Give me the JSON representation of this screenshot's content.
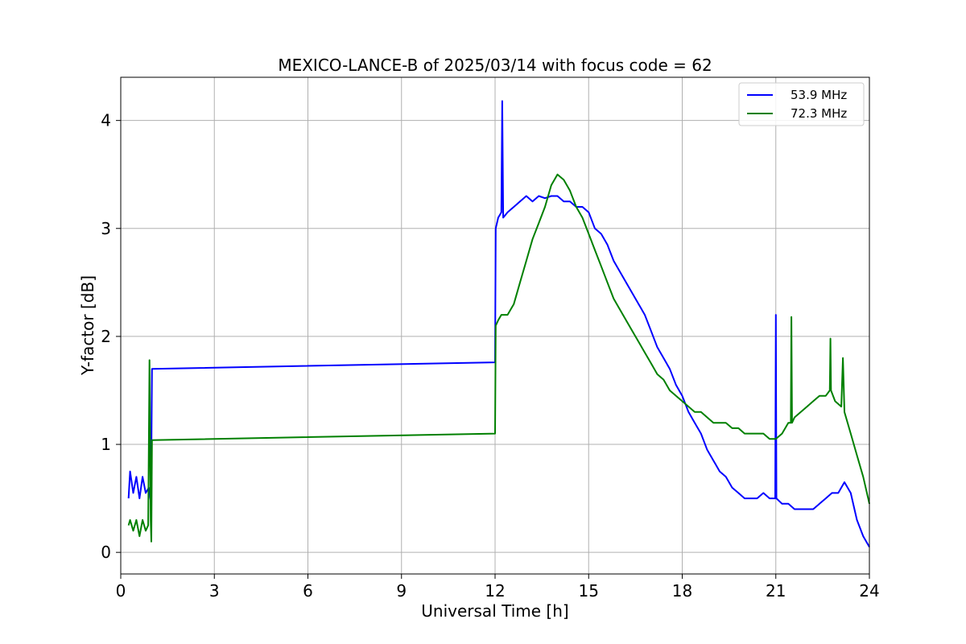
{
  "chart_data": {
    "type": "line",
    "title": "MEXICO-LANCE-B of 2025/03/14 with focus code = 62",
    "xlabel": "Universal Time [h]",
    "ylabel": "Y-factor [dB]",
    "xlim": [
      0,
      24
    ],
    "ylim": [
      -0.2,
      4.4
    ],
    "xticks": [
      0,
      3,
      6,
      9,
      12,
      15,
      18,
      21,
      24
    ],
    "yticks": [
      0,
      1,
      2,
      3,
      4
    ],
    "grid": true,
    "legend_position": "top-right",
    "series": [
      {
        "name": "53.9 MHz",
        "color": "#0000ff",
        "x": [
          0.25,
          0.3,
          0.4,
          0.5,
          0.6,
          0.7,
          0.8,
          0.9,
          0.97,
          1.0,
          12.0,
          12.02,
          12.1,
          12.2,
          12.23,
          12.26,
          12.4,
          12.6,
          12.8,
          13.0,
          13.2,
          13.4,
          13.6,
          13.8,
          14.0,
          14.2,
          14.4,
          14.6,
          14.8,
          15.0,
          15.2,
          15.4,
          15.6,
          15.8,
          16.0,
          16.2,
          16.4,
          16.6,
          16.8,
          17.0,
          17.2,
          17.4,
          17.6,
          17.8,
          18.0,
          18.2,
          18.4,
          18.6,
          18.8,
          19.0,
          19.2,
          19.4,
          19.6,
          19.8,
          20.0,
          20.2,
          20.4,
          20.6,
          20.8,
          20.98,
          21.0,
          21.02,
          21.2,
          21.4,
          21.6,
          21.8,
          22.0,
          22.2,
          22.4,
          22.6,
          22.8,
          23.0,
          23.2,
          23.4,
          23.6,
          23.8,
          24.0
        ],
        "y": [
          0.5,
          0.75,
          0.55,
          0.7,
          0.5,
          0.7,
          0.55,
          0.6,
          0.45,
          1.7,
          1.76,
          3.0,
          3.1,
          3.15,
          4.18,
          3.1,
          3.15,
          3.2,
          3.25,
          3.3,
          3.25,
          3.3,
          3.28,
          3.3,
          3.3,
          3.25,
          3.25,
          3.2,
          3.2,
          3.15,
          3.0,
          2.95,
          2.85,
          2.7,
          2.6,
          2.5,
          2.4,
          2.3,
          2.2,
          2.05,
          1.9,
          1.8,
          1.7,
          1.55,
          1.45,
          1.3,
          1.2,
          1.1,
          0.95,
          0.85,
          0.75,
          0.7,
          0.6,
          0.55,
          0.5,
          0.5,
          0.5,
          0.55,
          0.5,
          0.5,
          2.2,
          0.5,
          0.45,
          0.45,
          0.4,
          0.4,
          0.4,
          0.4,
          0.45,
          0.5,
          0.55,
          0.55,
          0.65,
          0.55,
          0.3,
          0.15,
          0.05
        ]
      },
      {
        "name": "72.3 MHz",
        "color": "#008000",
        "x": [
          0.25,
          0.3,
          0.4,
          0.5,
          0.6,
          0.7,
          0.8,
          0.88,
          0.92,
          0.96,
          0.98,
          1.0,
          12.0,
          12.02,
          12.1,
          12.2,
          12.4,
          12.6,
          12.8,
          13.0,
          13.2,
          13.4,
          13.6,
          13.8,
          14.0,
          14.2,
          14.4,
          14.6,
          14.8,
          15.0,
          15.2,
          15.4,
          15.6,
          15.8,
          16.0,
          16.2,
          16.4,
          16.6,
          16.8,
          17.0,
          17.2,
          17.4,
          17.6,
          17.8,
          18.0,
          18.2,
          18.4,
          18.6,
          18.8,
          19.0,
          19.2,
          19.4,
          19.6,
          19.8,
          20.0,
          20.2,
          20.4,
          20.6,
          20.8,
          21.0,
          21.2,
          21.4,
          21.48,
          21.5,
          21.52,
          21.6,
          21.8,
          22.0,
          22.2,
          22.4,
          22.6,
          22.73,
          22.75,
          22.77,
          22.9,
          23.1,
          23.15,
          23.2,
          23.4,
          23.6,
          23.8,
          24.0
        ],
        "y": [
          0.25,
          0.3,
          0.2,
          0.3,
          0.15,
          0.3,
          0.2,
          0.25,
          1.78,
          0.3,
          0.1,
          1.04,
          1.1,
          2.1,
          2.15,
          2.2,
          2.2,
          2.3,
          2.5,
          2.7,
          2.9,
          3.05,
          3.2,
          3.4,
          3.5,
          3.45,
          3.35,
          3.2,
          3.1,
          2.95,
          2.8,
          2.65,
          2.5,
          2.35,
          2.25,
          2.15,
          2.05,
          1.95,
          1.85,
          1.75,
          1.65,
          1.6,
          1.5,
          1.45,
          1.4,
          1.35,
          1.3,
          1.3,
          1.25,
          1.2,
          1.2,
          1.2,
          1.15,
          1.15,
          1.1,
          1.1,
          1.1,
          1.1,
          1.05,
          1.05,
          1.1,
          1.2,
          1.2,
          2.18,
          1.2,
          1.25,
          1.3,
          1.35,
          1.4,
          1.45,
          1.45,
          1.5,
          1.98,
          1.5,
          1.4,
          1.35,
          1.8,
          1.3,
          1.1,
          0.9,
          0.7,
          0.45
        ]
      }
    ]
  }
}
